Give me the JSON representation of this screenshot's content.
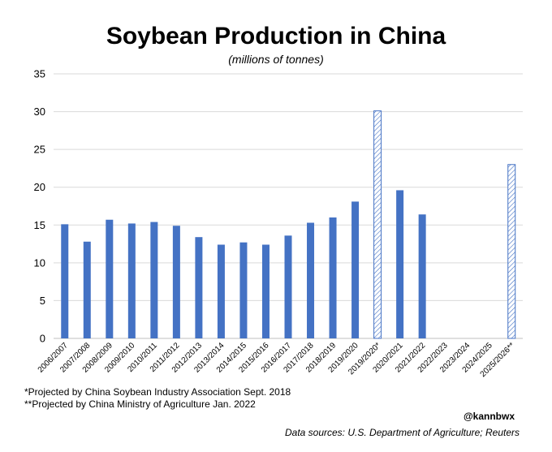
{
  "chart_data": {
    "type": "bar",
    "title": "Soybean Production in China",
    "subtitle": "(millions of tonnes)",
    "xlabel": "",
    "ylabel": "",
    "ylim": [
      0,
      35
    ],
    "yticks": [
      0,
      5,
      10,
      15,
      20,
      25,
      30,
      35
    ],
    "grid": true,
    "legend": "none",
    "categories": [
      "2006/2007",
      "2007/2008",
      "2008/2009",
      "2009/2010",
      "2010/2011",
      "2011/2012",
      "2012/2013",
      "2013/2014",
      "2014/2015",
      "2015/2016",
      "2016/2017",
      "2017/2018",
      "2018/2019",
      "2019/2020",
      "2019/2020*",
      "2020/2021",
      "2021/2022",
      "2022/2023",
      "2023/2024",
      "2024/2025",
      "2025/2026**"
    ],
    "values": [
      15.1,
      12.8,
      15.7,
      15.2,
      15.4,
      14.9,
      13.4,
      12.4,
      12.7,
      12.4,
      13.6,
      15.3,
      16.0,
      18.1,
      30.1,
      19.6,
      16.4,
      null,
      null,
      null,
      23.0
    ],
    "projected": [
      false,
      false,
      false,
      false,
      false,
      false,
      false,
      false,
      false,
      false,
      false,
      false,
      false,
      false,
      true,
      false,
      false,
      false,
      false,
      false,
      true
    ],
    "bar_color": "#4472C4"
  },
  "notes": [
    "*Projected by China Soybean Industry Association Sept. 2018",
    "**Projected by China Ministry of Agriculture Jan. 2022"
  ],
  "credit": "@kannbwx",
  "sources": "Data sources: U.S. Department of Agriculture; Reuters"
}
